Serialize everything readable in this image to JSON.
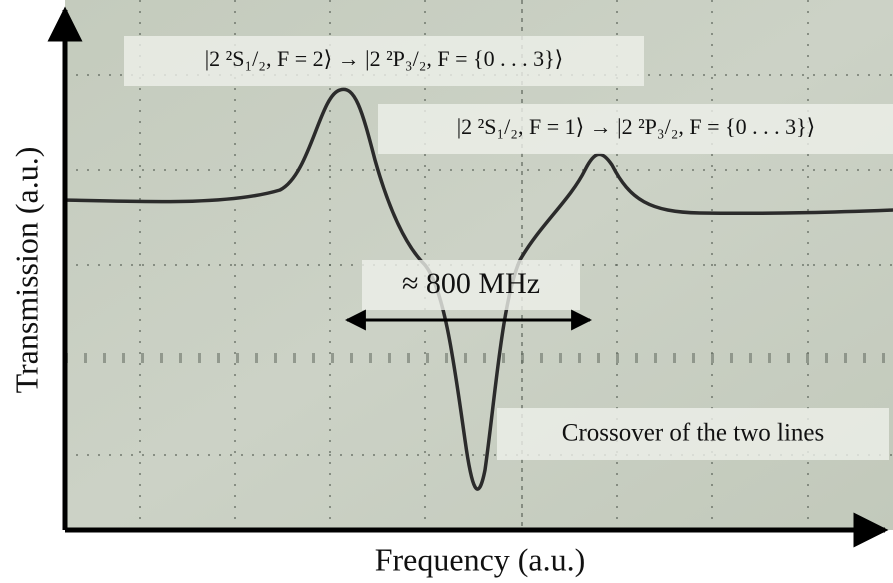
{
  "axes": {
    "x_label": "Frequency (a.u.)",
    "y_label": "Transmission (a.u.)"
  },
  "annotations": {
    "transition_1": "|2 ²S₁/₂, F = 2⟩ → |2 ²P₃/₂, F = {0 . . . 3}⟩",
    "transition_2": "|2 ²S₁/₂, F = 1⟩ → |2 ²P₃/₂, F = {0 . . . 3}⟩",
    "spacing": "≈ 800 MHz",
    "crossover": "Crossover of the two lines"
  }
}
